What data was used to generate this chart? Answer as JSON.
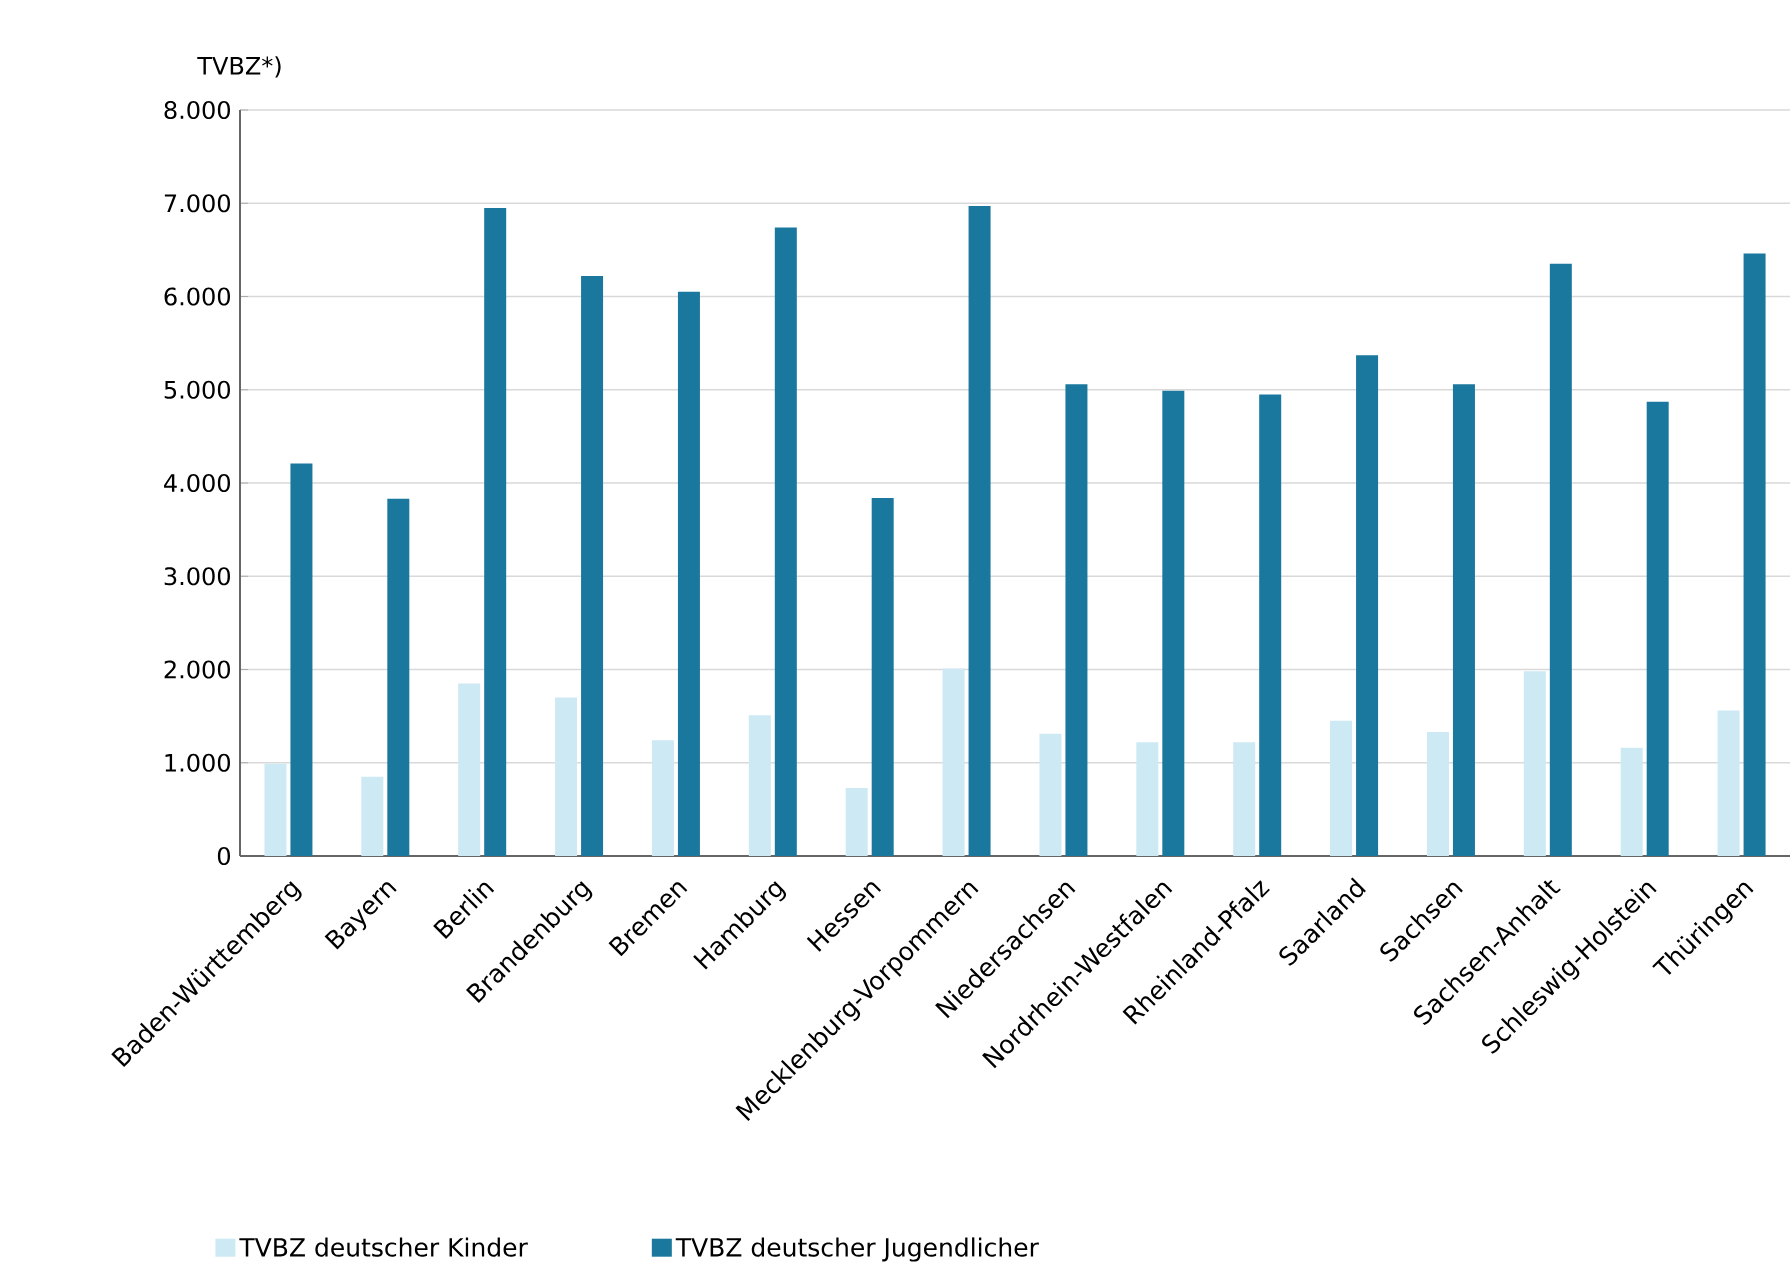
{
  "chart_data": {
    "type": "bar",
    "ylabel": "TVBZ*)",
    "categories": [
      "Baden-Württemberg",
      "Bayern",
      "Berlin",
      "Brandenburg",
      "Bremen",
      "Hamburg",
      "Hessen",
      "Mecklenburg-Vorpommern",
      "Niedersachsen",
      "Nordrhein-Westfalen",
      "Rheinland-Pfalz",
      "Saarland",
      "Sachsen",
      "Sachsen-Anhalt",
      "Schleswig-Holstein",
      "Thüringen"
    ],
    "series": [
      {
        "name": "TVBZ deutscher Kinder",
        "color": "#cde9f4",
        "values": [
          990,
          850,
          1850,
          1700,
          1240,
          1510,
          730,
          2010,
          1310,
          1220,
          1220,
          1450,
          1330,
          1980,
          1160,
          1560
        ]
      },
      {
        "name": "TVBZ deutscher Jugendlicher",
        "color": "#1a779d",
        "values": [
          4210,
          3830,
          6950,
          6220,
          6050,
          6740,
          3840,
          6970,
          5060,
          4990,
          4950,
          5370,
          5060,
          6350,
          4870,
          6460
        ]
      }
    ],
    "ylim": [
      0,
      8000
    ],
    "yticks": [
      {
        "value": 0,
        "label": "0"
      },
      {
        "value": 1000,
        "label": "1.000"
      },
      {
        "value": 2000,
        "label": "2.000"
      },
      {
        "value": 3000,
        "label": "3.000"
      },
      {
        "value": 4000,
        "label": "4.000"
      },
      {
        "value": 5000,
        "label": "5.000"
      },
      {
        "value": 6000,
        "label": "6.000"
      },
      {
        "value": 7000,
        "label": "7.000"
      },
      {
        "value": 8000,
        "label": "8.000"
      }
    ],
    "grid": "y",
    "legend": "bottom"
  }
}
